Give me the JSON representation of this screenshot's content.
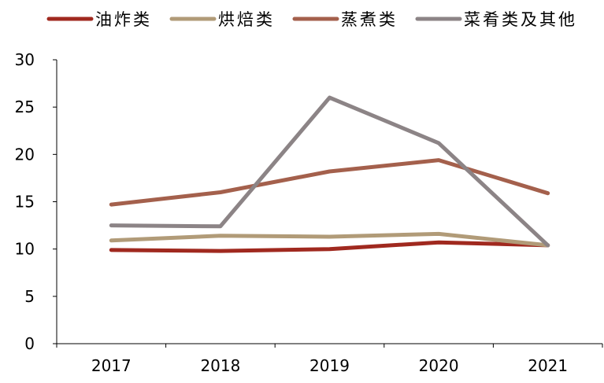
{
  "chart_data": {
    "type": "line",
    "title": "",
    "xlabel": "",
    "ylabel": "",
    "categories": [
      "2017",
      "2018",
      "2019",
      "2020",
      "2021"
    ],
    "ylim": [
      0,
      30
    ],
    "yticks": [
      0,
      5,
      10,
      15,
      20,
      25,
      30
    ],
    "grid": false,
    "legend_position": "top",
    "series": [
      {
        "name": "油炸类",
        "color": "#A0291F",
        "values": [
          9.9,
          9.8,
          10.0,
          10.7,
          10.4
        ]
      },
      {
        "name": "烘焙类",
        "color": "#B19B78",
        "values": [
          10.9,
          11.4,
          11.3,
          11.6,
          10.4
        ]
      },
      {
        "name": "蒸煮类",
        "color": "#A4604C",
        "values": [
          14.7,
          16.0,
          18.2,
          19.4,
          15.9
        ]
      },
      {
        "name": "菜肴类及其他",
        "color": "#8C8486",
        "values": [
          12.5,
          12.4,
          26.0,
          21.2,
          10.4
        ]
      }
    ]
  }
}
